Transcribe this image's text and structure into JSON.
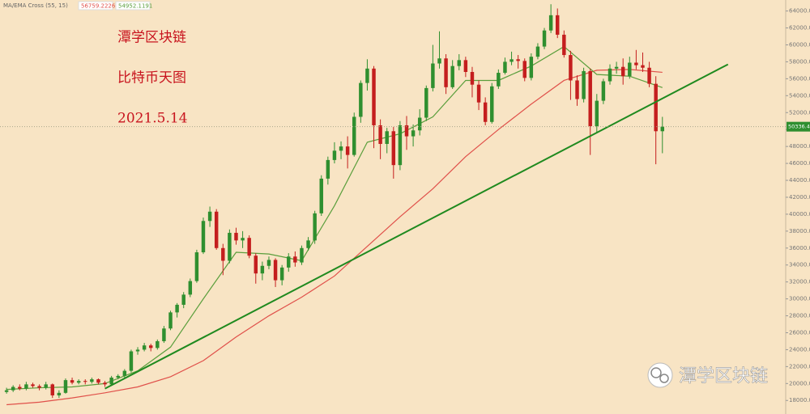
{
  "chart_data": {
    "type": "candlestick",
    "title": "MA/EMA Cross (55, 15)",
    "annotations": [
      "潭学区块链",
      "比特币天图",
      "2021.5.14"
    ],
    "watermark": "潭学区块链",
    "up_color": "#2f8f2f",
    "down_color": "#c41e1e",
    "xlim": [
      -1,
      118.8
    ],
    "ylim": [
      16400,
      65300
    ],
    "yticks": [
      {
        "value": 18000,
        "label": "18000.00"
      },
      {
        "value": 20000,
        "label": "20000.00"
      },
      {
        "value": 22000,
        "label": "22000.00"
      },
      {
        "value": 24000,
        "label": "24000.00"
      },
      {
        "value": 26000,
        "label": "26000.00"
      },
      {
        "value": 28000,
        "label": "28000.00"
      },
      {
        "value": 30000,
        "label": "30000.00"
      },
      {
        "value": 32000,
        "label": "32000.00"
      },
      {
        "value": 34000,
        "label": "34000.00"
      },
      {
        "value": 36000,
        "label": "36000.00"
      },
      {
        "value": 38000,
        "label": "38000.00"
      },
      {
        "value": 40000,
        "label": "40000.00"
      },
      {
        "value": 42000,
        "label": "42000.00"
      },
      {
        "value": 44000,
        "label": "44000.00"
      },
      {
        "value": 46000,
        "label": "46000.00"
      },
      {
        "value": 48000,
        "label": "48000.00"
      },
      {
        "value": 50000,
        "label": "50000.00"
      },
      {
        "value": 52000,
        "label": "52000.00"
      },
      {
        "value": 54000,
        "label": "54000.00"
      },
      {
        "value": 56000,
        "label": "56000.00"
      },
      {
        "value": 58000,
        "label": "58000.00"
      },
      {
        "value": 60000,
        "label": "60000.00"
      },
      {
        "value": 62000,
        "label": "62000.00"
      },
      {
        "value": 64000,
        "label": "64000.00"
      }
    ],
    "candles": [
      [
        19000,
        19500,
        18800,
        19200
      ],
      [
        19200,
        19800,
        19000,
        19600
      ],
      [
        19600,
        19900,
        19200,
        19400
      ],
      [
        19400,
        20200,
        19200,
        19900
      ],
      [
        19900,
        20100,
        19500,
        19700
      ],
      [
        19700,
        19900,
        19200,
        19500
      ],
      [
        19500,
        20200,
        19300,
        19900
      ],
      [
        19900,
        20000,
        18300,
        18600
      ],
      [
        18600,
        19200,
        18300,
        18900
      ],
      [
        18900,
        20600,
        18800,
        20400
      ],
      [
        20400,
        20700,
        19900,
        20100
      ],
      [
        20100,
        20500,
        19900,
        20300
      ],
      [
        20300,
        20500,
        19900,
        20200
      ],
      [
        20200,
        20700,
        20000,
        20500
      ],
      [
        20500,
        20600,
        19900,
        20100
      ],
      [
        20100,
        20300,
        19600,
        19900
      ],
      [
        19900,
        20900,
        19800,
        20700
      ],
      [
        20700,
        21100,
        20500,
        20900
      ],
      [
        20900,
        21700,
        20700,
        21500
      ],
      [
        21500,
        24000,
        21300,
        23800
      ],
      [
        23800,
        24300,
        23400,
        24000
      ],
      [
        24000,
        24800,
        23800,
        24500
      ],
      [
        24500,
        24700,
        23800,
        24200
      ],
      [
        24200,
        25200,
        24000,
        25000
      ],
      [
        25000,
        26800,
        24800,
        26500
      ],
      [
        26500,
        28600,
        26300,
        28400
      ],
      [
        28400,
        29500,
        27800,
        29300
      ],
      [
        29300,
        30800,
        28900,
        30500
      ],
      [
        30500,
        32400,
        30200,
        32100
      ],
      [
        32100,
        35800,
        31900,
        35500
      ],
      [
        35500,
        39600,
        35300,
        39200
      ],
      [
        39200,
        40900,
        38500,
        40300
      ],
      [
        40300,
        40600,
        35800,
        36000
      ],
      [
        36000,
        36500,
        32800,
        34500
      ],
      [
        34500,
        38200,
        34200,
        37800
      ],
      [
        37800,
        38400,
        36400,
        36900
      ],
      [
        36900,
        38000,
        36000,
        37200
      ],
      [
        37200,
        37500,
        34800,
        35100
      ],
      [
        35100,
        35400,
        31800,
        33000
      ],
      [
        33000,
        34400,
        32200,
        33900
      ],
      [
        33900,
        35000,
        33500,
        34600
      ],
      [
        34600,
        34800,
        31400,
        32200
      ],
      [
        32200,
        34000,
        31600,
        33700
      ],
      [
        33700,
        35400,
        33200,
        35000
      ],
      [
        35000,
        35600,
        33800,
        34300
      ],
      [
        34300,
        36300,
        34000,
        36000
      ],
      [
        36000,
        37300,
        35700,
        36900
      ],
      [
        36900,
        40400,
        36500,
        40100
      ],
      [
        40100,
        44600,
        39800,
        44200
      ],
      [
        44200,
        46800,
        43500,
        46400
      ],
      [
        46400,
        48500,
        46000,
        47500
      ],
      [
        47500,
        48600,
        46500,
        48000
      ],
      [
        48000,
        49200,
        45400,
        47000
      ],
      [
        47000,
        52000,
        46800,
        51500
      ],
      [
        51500,
        55800,
        50800,
        55500
      ],
      [
        55500,
        58300,
        54600,
        57200
      ],
      [
        57200,
        57500,
        47800,
        50500
      ],
      [
        50500,
        51200,
        46500,
        48300
      ],
      [
        48300,
        50200,
        47200,
        49800
      ],
      [
        49800,
        50300,
        44200,
        45800
      ],
      [
        45800,
        51000,
        45200,
        50500
      ],
      [
        50500,
        51600,
        47600,
        49200
      ],
      [
        49200,
        50600,
        48000,
        49900
      ],
      [
        49900,
        52400,
        49300,
        51400
      ],
      [
        51400,
        55200,
        51000,
        54900
      ],
      [
        54900,
        60000,
        54500,
        57800
      ],
      [
        57800,
        61600,
        57200,
        58400
      ],
      [
        58400,
        58900,
        54200,
        55000
      ],
      [
        55000,
        58200,
        54800,
        57500
      ],
      [
        57500,
        58900,
        57000,
        58200
      ],
      [
        58200,
        58600,
        56200,
        56800
      ],
      [
        56800,
        57400,
        53800,
        55300
      ],
      [
        55300,
        55800,
        52300,
        53200
      ],
      [
        53200,
        53800,
        50500,
        50900
      ],
      [
        50900,
        55500,
        50700,
        55100
      ],
      [
        55100,
        57100,
        54800,
        56700
      ],
      [
        56700,
        58500,
        56500,
        58000
      ],
      [
        58000,
        59200,
        57600,
        58300
      ],
      [
        58300,
        58800,
        57200,
        58100
      ],
      [
        58100,
        58400,
        55700,
        56100
      ],
      [
        56100,
        59000,
        55800,
        58600
      ],
      [
        58600,
        60200,
        58300,
        59800
      ],
      [
        59800,
        62000,
        59500,
        61700
      ],
      [
        61700,
        64800,
        61400,
        63500
      ],
      [
        63500,
        64300,
        60800,
        61200
      ],
      [
        61200,
        61700,
        58500,
        58800
      ],
      [
        58800,
        59300,
        53500,
        55800
      ],
      [
        55800,
        56400,
        52800,
        53600
      ],
      [
        53600,
        57300,
        53200,
        56900
      ],
      [
        56900,
        57200,
        47000,
        50400
      ],
      [
        50400,
        54200,
        49600,
        53400
      ],
      [
        53400,
        56000,
        53000,
        55700
      ],
      [
        55700,
        57700,
        55300,
        57200
      ],
      [
        57200,
        58000,
        56600,
        57400
      ],
      [
        57400,
        58400,
        55300,
        56300
      ],
      [
        56300,
        58600,
        56000,
        57900
      ],
      [
        57900,
        59400,
        57100,
        57600
      ],
      [
        57600,
        59100,
        56800,
        57300
      ],
      [
        57300,
        58000,
        55000,
        55400
      ],
      [
        55400,
        56300,
        45900,
        49800
      ],
      [
        49800,
        51500,
        47200,
        50336.46
      ]
    ],
    "series": [
      {
        "color": "#e0504a",
        "x": [
          0,
          5,
          10,
          15,
          20,
          25,
          30,
          35,
          40,
          45,
          50,
          55,
          60,
          65,
          70,
          75,
          80,
          85,
          90,
          95,
          100
        ],
        "values": [
          17500,
          17800,
          18300,
          18900,
          19600,
          20800,
          22700,
          25500,
          28000,
          30200,
          32700,
          36200,
          39700,
          43000,
          46800,
          50000,
          53000,
          55800,
          57000,
          57100,
          56759.2226
        ]
      },
      {
        "color": "#5a9e3c",
        "x": [
          0,
          5,
          10,
          15,
          20,
          25,
          30,
          35,
          40,
          45,
          50,
          55,
          60,
          65,
          70,
          75,
          80,
          85,
          90,
          95,
          100
        ],
        "values": [
          19300,
          19500,
          19600,
          20000,
          21500,
          24300,
          30000,
          35500,
          35300,
          34500,
          41000,
          48500,
          49500,
          51500,
          55800,
          55800,
          57500,
          59800,
          56500,
          56300,
          54952.1191
        ]
      }
    ],
    "trendline": {
      "color": "#1f8a1f",
      "x": [
        15,
        110
      ],
      "values": [
        19400,
        57700
      ]
    }
  }
}
